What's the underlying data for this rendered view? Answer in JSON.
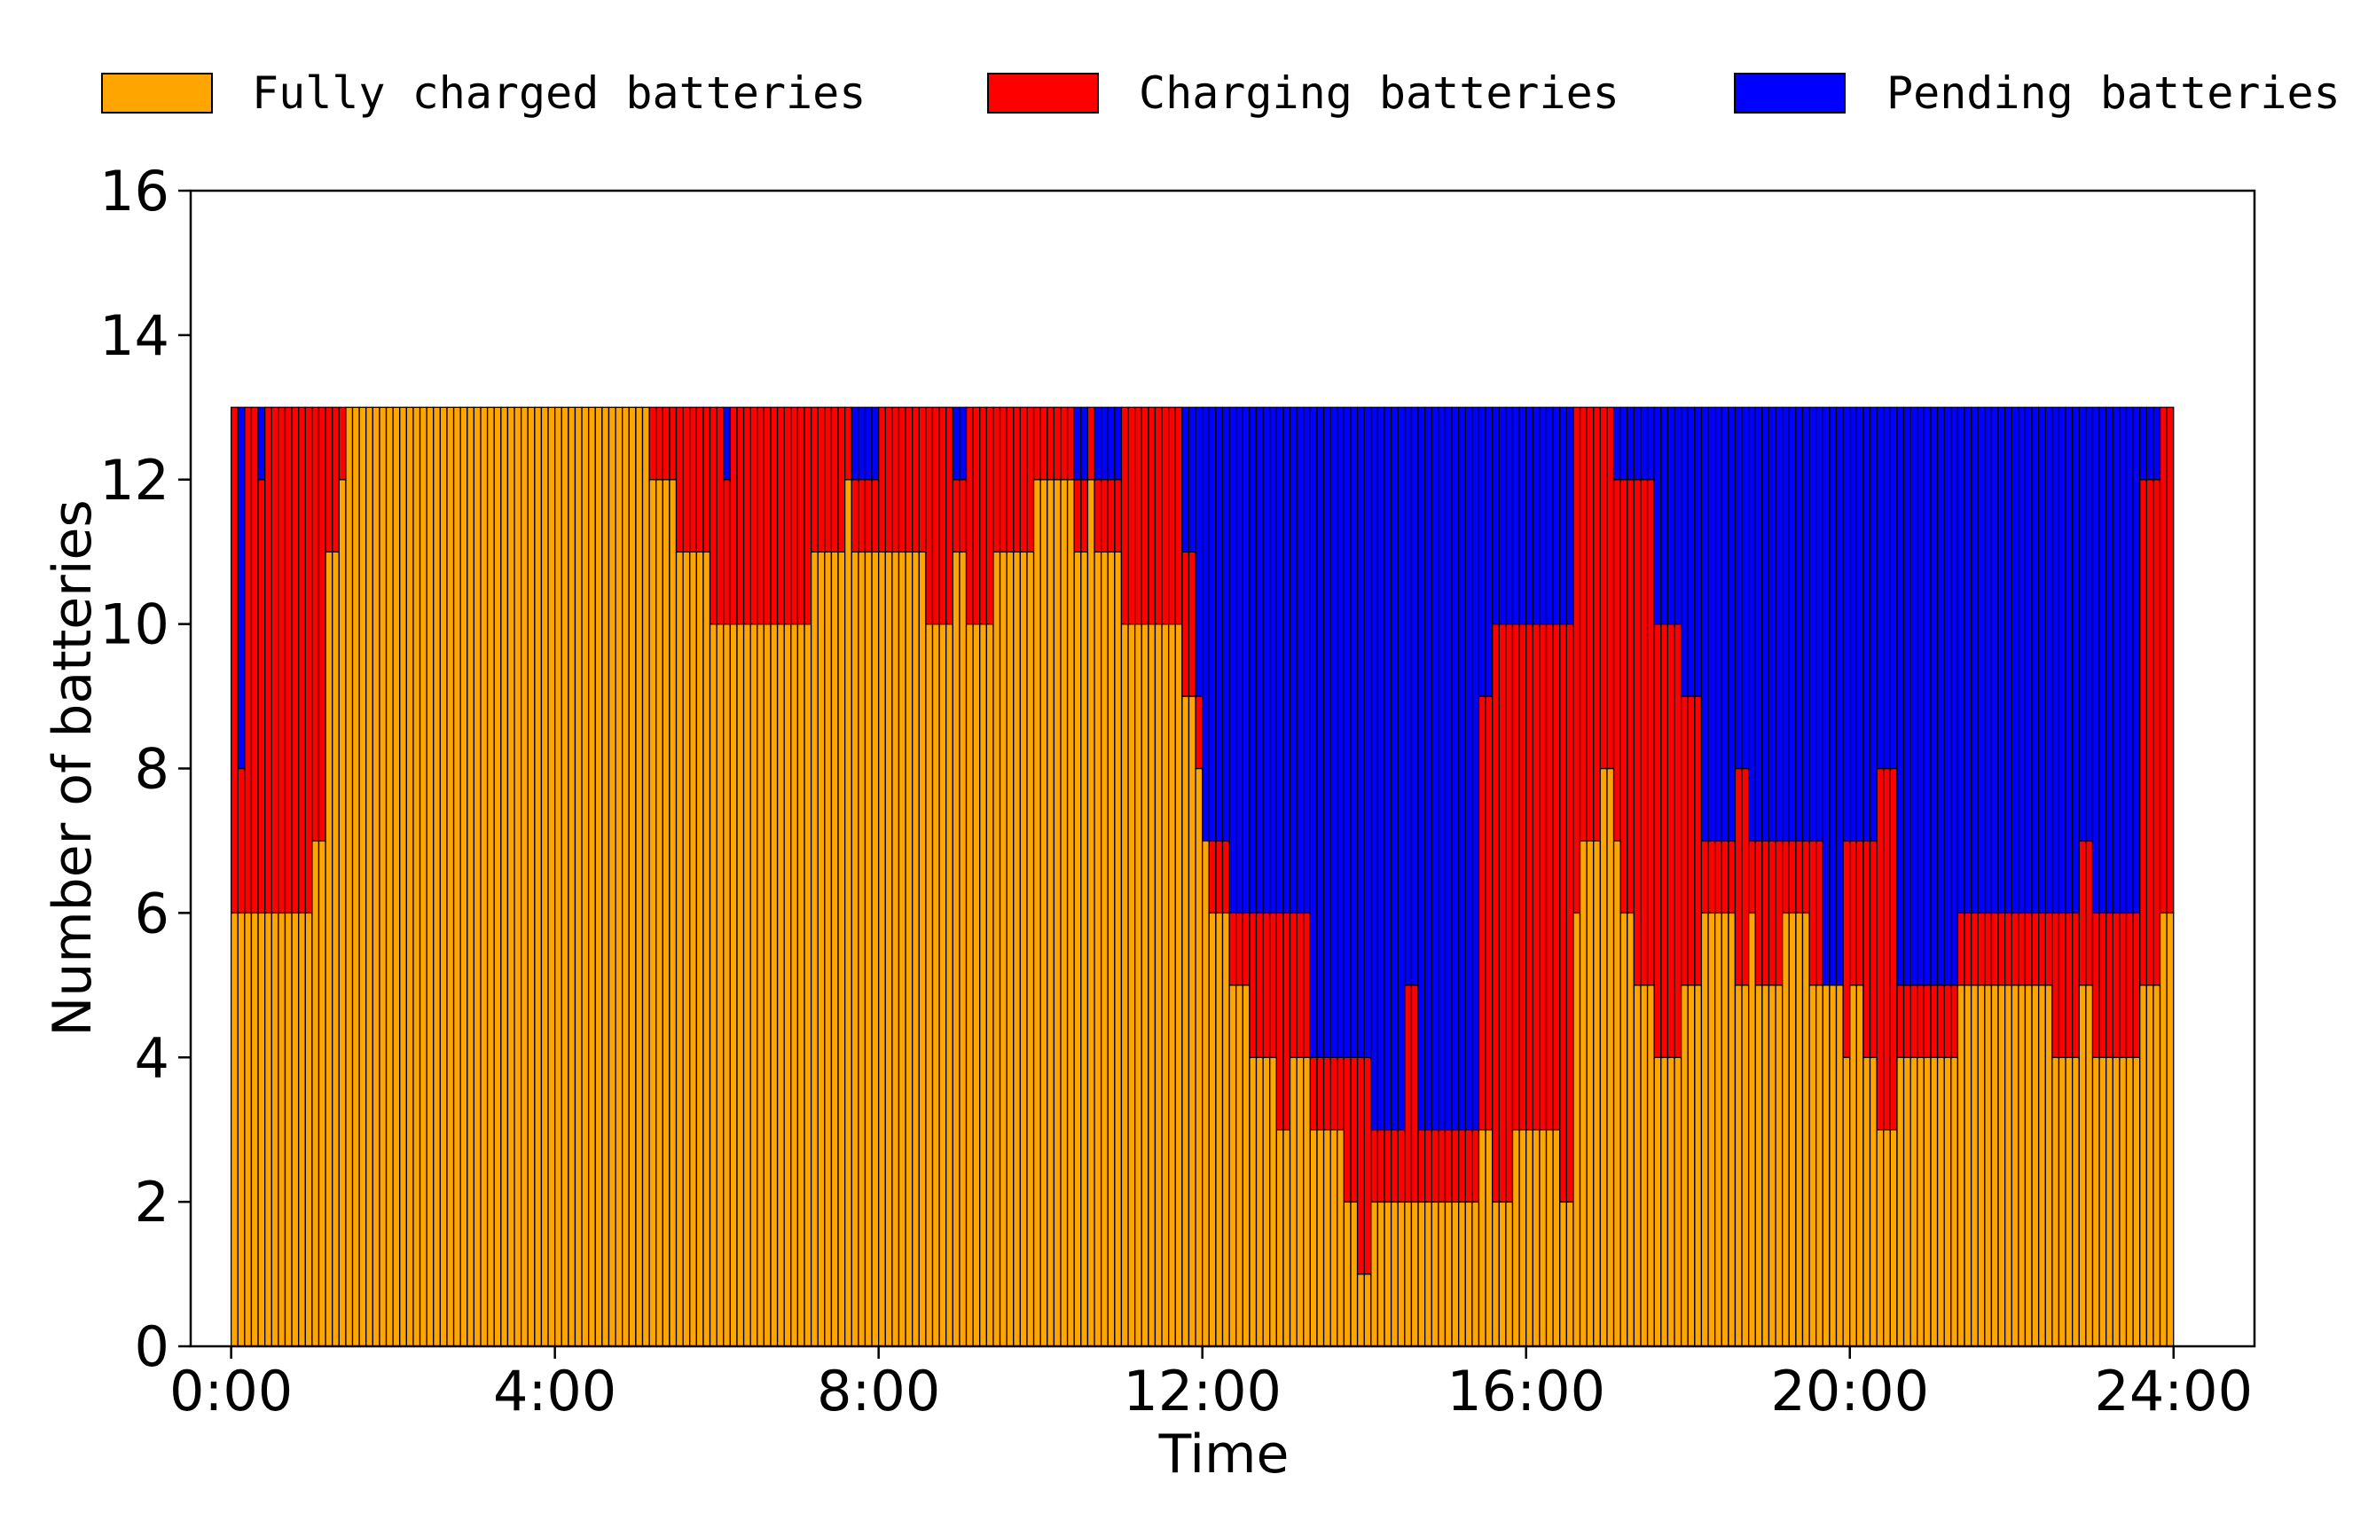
{
  "chart_data": {
    "type": "bar",
    "stacked": true,
    "xlabel": "Time",
    "ylabel": "Number of batteries",
    "ylim": [
      0,
      16
    ],
    "yticks": [
      "0",
      "2",
      "4",
      "6",
      "8",
      "10",
      "12",
      "14",
      "16"
    ],
    "xlim_hours": [
      -0.5,
      25
    ],
    "xticks": [
      "0:00",
      "4:00",
      "8:00",
      "12:00",
      "16:00",
      "20:00",
      "24:00"
    ],
    "xtick_hours": [
      0,
      4,
      8,
      12,
      16,
      20,
      24
    ],
    "legend_placement": "top",
    "grid": false,
    "total_batteries": 13,
    "interval_minutes": 5,
    "series": [
      {
        "name": "Fully charged batteries",
        "color": "#FFA500"
      },
      {
        "name": "Charging batteries",
        "color": "#FF0000"
      },
      {
        "name": "Pending batteries",
        "color": "#0000FF"
      }
    ],
    "fully_charged_segments": [
      [
        0,
        1.0,
        6
      ],
      [
        1.0,
        1.15,
        7
      ],
      [
        1.15,
        1.3,
        11
      ],
      [
        1.3,
        1.45,
        12
      ],
      [
        1.45,
        5.2,
        13
      ],
      [
        5.2,
        5.5,
        12
      ],
      [
        5.5,
        5.9,
        11
      ],
      [
        5.9,
        7.2,
        10
      ],
      [
        7.2,
        7.55,
        11
      ],
      [
        7.55,
        7.65,
        12
      ],
      [
        7.65,
        8.6,
        11
      ],
      [
        8.6,
        8.95,
        10
      ],
      [
        8.95,
        9.1,
        11
      ],
      [
        9.1,
        9.4,
        10
      ],
      [
        9.4,
        9.9,
        11
      ],
      [
        9.9,
        10.4,
        12
      ],
      [
        10.4,
        10.6,
        11
      ],
      [
        10.6,
        10.7,
        12
      ],
      [
        10.7,
        11.0,
        11
      ],
      [
        11.0,
        11.75,
        10
      ],
      [
        11.75,
        11.9,
        9
      ],
      [
        11.9,
        12.0,
        8
      ],
      [
        12.0,
        12.1,
        7
      ],
      [
        12.1,
        12.35,
        6
      ],
      [
        12.35,
        12.6,
        5
      ],
      [
        12.6,
        12.95,
        4
      ],
      [
        12.95,
        13.05,
        3
      ],
      [
        13.05,
        13.3,
        4
      ],
      [
        13.3,
        13.75,
        3
      ],
      [
        13.75,
        13.95,
        2
      ],
      [
        13.95,
        14.05,
        1
      ],
      [
        14.05,
        15.45,
        2
      ],
      [
        15.45,
        15.55,
        3
      ],
      [
        15.55,
        15.85,
        2
      ],
      [
        15.85,
        16.45,
        3
      ],
      [
        16.45,
        16.55,
        2
      ],
      [
        16.55,
        16.7,
        6
      ],
      [
        16.7,
        16.9,
        7
      ],
      [
        16.9,
        17.05,
        8
      ],
      [
        17.05,
        17.2,
        7
      ],
      [
        17.2,
        17.35,
        6
      ],
      [
        17.35,
        17.6,
        5
      ],
      [
        17.6,
        17.95,
        4
      ],
      [
        17.95,
        18.15,
        5
      ],
      [
        18.15,
        18.6,
        6
      ],
      [
        18.6,
        18.75,
        5
      ],
      [
        18.75,
        18.85,
        6
      ],
      [
        18.85,
        19.2,
        5
      ],
      [
        19.2,
        19.5,
        6
      ],
      [
        19.5,
        19.7,
        5
      ],
      [
        19.7,
        19.9,
        5
      ],
      [
        19.9,
        20.0,
        4
      ],
      [
        20.0,
        20.2,
        5
      ],
      [
        20.2,
        20.35,
        4
      ],
      [
        20.35,
        20.55,
        3
      ],
      [
        20.55,
        21.3,
        4
      ],
      [
        21.3,
        22.5,
        5
      ],
      [
        22.5,
        22.8,
        4
      ],
      [
        22.8,
        23.0,
        5
      ],
      [
        23.0,
        23.6,
        4
      ],
      [
        23.6,
        23.8,
        5
      ],
      [
        23.8,
        24.0,
        6
      ]
    ],
    "charging_segments": [
      [
        0,
        0.12,
        7
      ],
      [
        0.12,
        0.2,
        2
      ],
      [
        0.2,
        0.35,
        7
      ],
      [
        0.35,
        0.45,
        6
      ],
      [
        0.45,
        0.55,
        7
      ],
      [
        0.55,
        1.0,
        7
      ],
      [
        1.0,
        1.15,
        6
      ],
      [
        1.15,
        1.3,
        2
      ],
      [
        1.3,
        1.45,
        1
      ],
      [
        1.45,
        5.2,
        0
      ],
      [
        5.2,
        5.5,
        1
      ],
      [
        5.5,
        5.9,
        2
      ],
      [
        5.9,
        6.1,
        3
      ],
      [
        6.1,
        6.2,
        2
      ],
      [
        6.2,
        6.35,
        3
      ],
      [
        6.35,
        7.2,
        3
      ],
      [
        7.2,
        7.55,
        2
      ],
      [
        7.55,
        7.65,
        1
      ],
      [
        7.65,
        8.0,
        1
      ],
      [
        8.0,
        8.6,
        2
      ],
      [
        8.6,
        8.95,
        3
      ],
      [
        8.95,
        9.1,
        1
      ],
      [
        9.1,
        9.4,
        3
      ],
      [
        9.4,
        9.9,
        2
      ],
      [
        9.9,
        10.4,
        1
      ],
      [
        10.4,
        10.6,
        1
      ],
      [
        10.6,
        10.7,
        1
      ],
      [
        10.7,
        11.0,
        1
      ],
      [
        11.0,
        11.5,
        3
      ],
      [
        11.5,
        11.75,
        3
      ],
      [
        11.75,
        11.9,
        2
      ],
      [
        11.9,
        12.0,
        1
      ],
      [
        12.0,
        12.1,
        0
      ],
      [
        12.1,
        12.35,
        1
      ],
      [
        12.35,
        12.6,
        1
      ],
      [
        12.6,
        12.95,
        2
      ],
      [
        12.95,
        13.05,
        3
      ],
      [
        13.05,
        13.3,
        2
      ],
      [
        13.3,
        13.75,
        1
      ],
      [
        13.75,
        13.95,
        2
      ],
      [
        13.95,
        14.05,
        3
      ],
      [
        14.05,
        14.5,
        1
      ],
      [
        14.5,
        14.7,
        3
      ],
      [
        14.7,
        15.45,
        1
      ],
      [
        15.45,
        15.55,
        6
      ],
      [
        15.55,
        15.85,
        8
      ],
      [
        15.85,
        16.45,
        7
      ],
      [
        16.45,
        16.55,
        8
      ],
      [
        16.55,
        16.7,
        7
      ],
      [
        16.7,
        16.9,
        6
      ],
      [
        16.9,
        17.05,
        5
      ],
      [
        17.05,
        17.2,
        5
      ],
      [
        17.2,
        17.35,
        6
      ],
      [
        17.35,
        17.6,
        7
      ],
      [
        17.6,
        17.95,
        6
      ],
      [
        17.95,
        18.15,
        4
      ],
      [
        18.15,
        18.6,
        1
      ],
      [
        18.6,
        18.75,
        3
      ],
      [
        18.75,
        18.85,
        1
      ],
      [
        18.85,
        19.2,
        2
      ],
      [
        19.2,
        19.5,
        1
      ],
      [
        19.5,
        19.7,
        2
      ],
      [
        19.7,
        19.9,
        0
      ],
      [
        19.9,
        20.0,
        3
      ],
      [
        20.0,
        20.2,
        2
      ],
      [
        20.2,
        20.35,
        3
      ],
      [
        20.35,
        20.55,
        5
      ],
      [
        20.55,
        21.3,
        1
      ],
      [
        21.3,
        22.5,
        1
      ],
      [
        22.5,
        22.8,
        2
      ],
      [
        22.8,
        23.0,
        2
      ],
      [
        23.0,
        23.6,
        2
      ],
      [
        23.6,
        23.8,
        7
      ],
      [
        23.8,
        24.0,
        7
      ]
    ]
  },
  "legend": [
    {
      "label": "Fully charged batteries",
      "color": "#FFA500"
    },
    {
      "label": "Charging batteries",
      "color": "#FF0000"
    },
    {
      "label": "Pending batteries",
      "color": "#0000FF"
    }
  ]
}
